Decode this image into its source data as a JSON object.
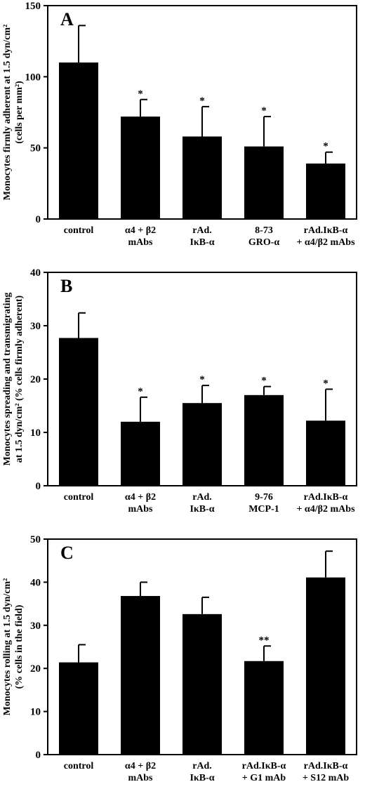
{
  "chart_data": [
    {
      "type": "bar",
      "panel": "A",
      "ylabel": [
        "Monocytes firmly adherent at 1.5 dyn/cm²",
        "(cells per mm²)"
      ],
      "ylim": [
        0,
        150
      ],
      "yticks": [
        0,
        50,
        100,
        150
      ],
      "categories": [
        [
          "control"
        ],
        [
          "α4 + β2",
          "mAbs"
        ],
        [
          "rAd.",
          "IκB-α"
        ],
        [
          "8-73",
          "GRO-α"
        ],
        [
          "rAd.IκB-α",
          "+ α4/β2 mAbs"
        ]
      ],
      "values": [
        110,
        72,
        58,
        51,
        39
      ],
      "errors": [
        26,
        12,
        21,
        21,
        8
      ],
      "annotations": [
        "",
        "*",
        "*",
        "*",
        "*"
      ]
    },
    {
      "type": "bar",
      "panel": "B",
      "ylabel": [
        "Monocytes spreading and transmigrating",
        "at 1.5 dyn/cm² (% cells firmly adherent)"
      ],
      "ylim": [
        0,
        40
      ],
      "yticks": [
        0,
        10,
        20,
        30,
        40
      ],
      "categories": [
        [
          "control"
        ],
        [
          "α4 + β2",
          "mAbs"
        ],
        [
          "rAd.",
          "IκB-α"
        ],
        [
          "9-76",
          "MCP-1"
        ],
        [
          "rAd.IκB-α",
          "+ α4/β2 mAbs"
        ]
      ],
      "values": [
        27.7,
        12.0,
        15.5,
        17.0,
        12.2
      ],
      "errors": [
        4.7,
        4.6,
        3.3,
        1.6,
        5.9
      ],
      "annotations": [
        "",
        "*",
        "*",
        "*",
        "*"
      ]
    },
    {
      "type": "bar",
      "panel": "C",
      "ylabel": [
        "Monocytes rolling at 1.5 dyn/cm²",
        "(% cells in the field)"
      ],
      "ylim": [
        0,
        50
      ],
      "yticks": [
        0,
        10,
        20,
        30,
        40,
        50
      ],
      "categories": [
        [
          "control"
        ],
        [
          "α4 + β2",
          "mAbs"
        ],
        [
          "rAd.",
          "IκB-α"
        ],
        [
          "rAd.IκB-α",
          "+ G1 mAb"
        ],
        [
          "rAd.IκB-α",
          "+ S12 mAb"
        ]
      ],
      "values": [
        21.4,
        36.8,
        32.6,
        21.7,
        41.1
      ],
      "errors": [
        4.1,
        3.2,
        3.9,
        3.5,
        6.1
      ],
      "annotations": [
        "",
        "",
        "",
        "**",
        ""
      ]
    }
  ]
}
